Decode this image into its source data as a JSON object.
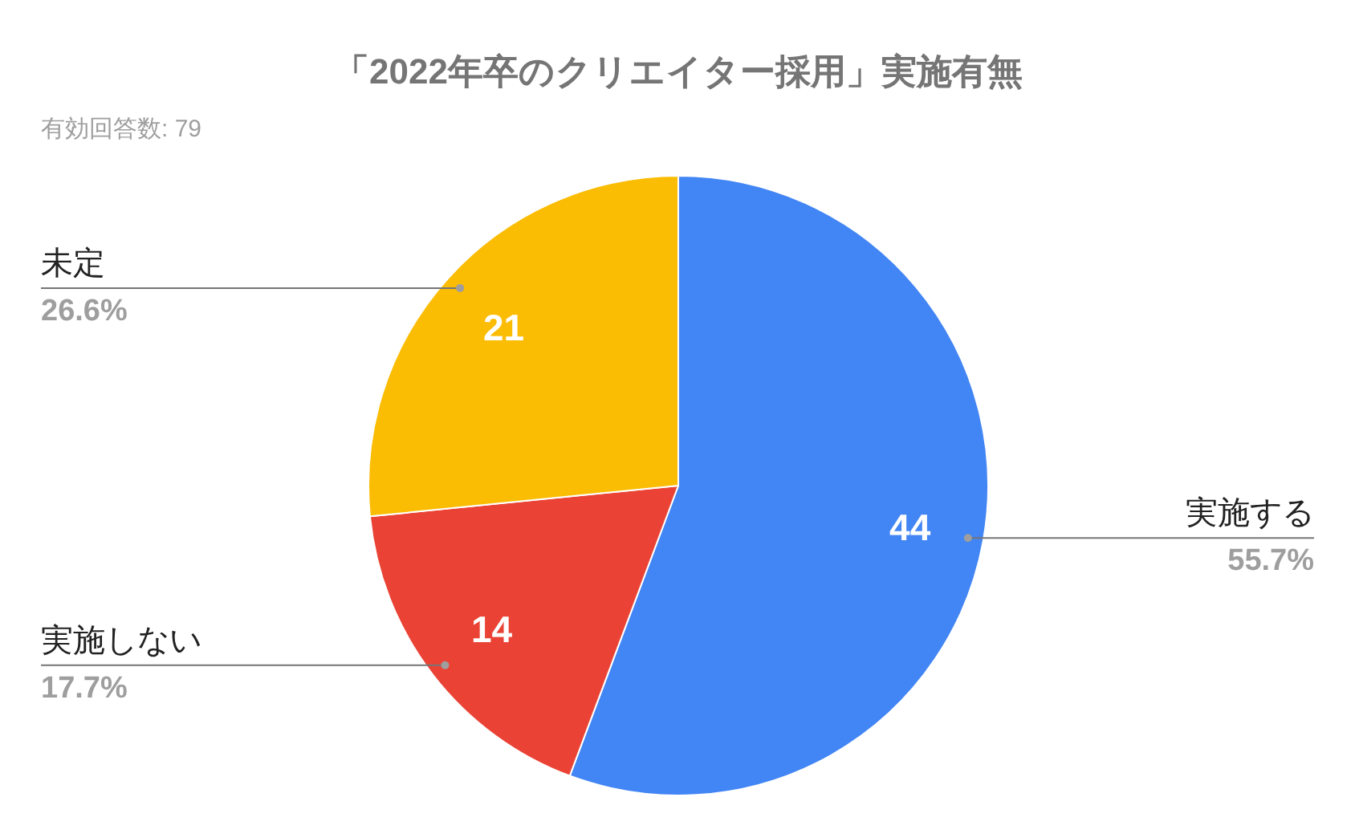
{
  "chart_data": {
    "type": "pie",
    "title": "「2022年卒のクリエイター採用」実施有無",
    "subtitle": "有効回答数: 79",
    "categories": [
      "実施する",
      "実施しない",
      "未定"
    ],
    "values": [
      44,
      14,
      21
    ],
    "colors": [
      "#4285f4",
      "#ea4335",
      "#fbbc04"
    ],
    "data_labels": true,
    "annotations": [
      "55.7%",
      "17.7%",
      "26.6%"
    ]
  }
}
